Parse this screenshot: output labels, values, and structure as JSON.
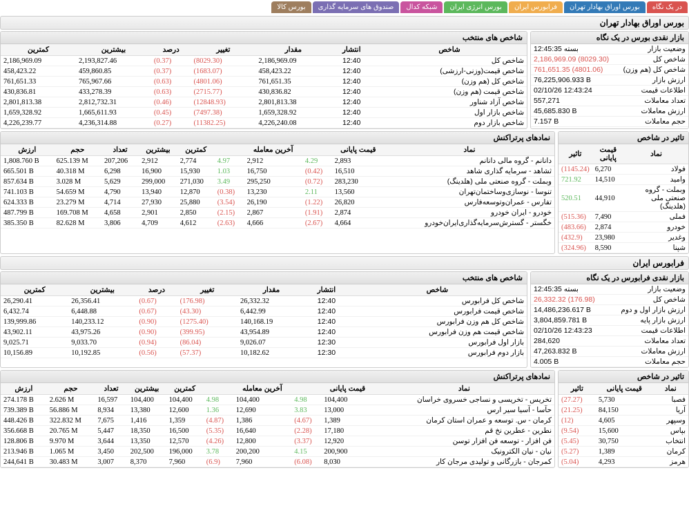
{
  "tabs": [
    {
      "label": "در یک نگاه",
      "cls": "red"
    },
    {
      "label": "بورس اوراق بهادار تهران",
      "cls": "blue"
    },
    {
      "label": "فرابورس ایران",
      "cls": "orange"
    },
    {
      "label": "بورس انرژی ایران",
      "cls": "green"
    },
    {
      "label": "شبکه کدال",
      "cls": "magenta"
    },
    {
      "label": "صندوق های سرمایه گذاری",
      "cls": "purple"
    },
    {
      "label": "بورس کالا",
      "cls": "brown"
    }
  ],
  "tse": {
    "title": "بورس اوراق بهادار تهران",
    "glance": {
      "title": "بازار نقدی بورس در یک نگاه",
      "rows": [
        {
          "k": "وضعیت بازار",
          "v": "بسته 12:45:35",
          "cls": ""
        },
        {
          "k": "شاخص کل",
          "v": "2,186,969.09 (8029.30)",
          "cls": "neg"
        },
        {
          "k": "شاخص كل (هم وزن)",
          "v": "761,651.35 (4801.06)",
          "cls": "neg"
        },
        {
          "k": "ارزش بازار",
          "v": "76,225,906.933 B",
          "cls": ""
        },
        {
          "k": "اطلاعات قیمت",
          "v": "02/10/26 12:43:24",
          "cls": ""
        },
        {
          "k": "تعداد معاملات",
          "v": "557,271",
          "cls": ""
        },
        {
          "k": "ارزش معاملات",
          "v": "45,685.830 B",
          "cls": ""
        },
        {
          "k": "حجم معاملات",
          "v": "7.157 B",
          "cls": ""
        }
      ]
    },
    "indices": {
      "title": "شاخص های منتخب",
      "headers": [
        "شاخص",
        "انتشار",
        "مقدار",
        "تغییر",
        "درصد",
        "بیشترین",
        "کمترین"
      ],
      "rows": [
        [
          "شاخص كل",
          "12:40",
          "2,186,969.09",
          "(8029.30)",
          "(0.37)",
          "2,193,827.46",
          "2,186,969.09"
        ],
        [
          "شاخص قیمت(وزنی-ارزشی)",
          "12:40",
          "458,423.22",
          "(1683.07)",
          "(0.37)",
          "459,860.85",
          "458,423.22"
        ],
        [
          "شاخص كل (هم وزن)",
          "12:40",
          "761,651.35",
          "(4801.06)",
          "(0.63)",
          "765,967.66",
          "761,651.33"
        ],
        [
          "شاخص قیمت (هم وزن)",
          "12:40",
          "430,836.82",
          "(2715.77)",
          "(0.63)",
          "433,278.39",
          "430,836.81"
        ],
        [
          "شاخص آزاد شناور",
          "12:40",
          "2,801,813.38",
          "(12848.93)",
          "(0.46)",
          "2,812,732.31",
          "2,801,813.38"
        ],
        [
          "شاخص بازار اول",
          "12:40",
          "1,659,328.92",
          "(7497.38)",
          "(0.45)",
          "1,665,611.93",
          "1,659,328.92"
        ],
        [
          "شاخص بازار دوم",
          "12:40",
          "4,226,240.08",
          "(11382.25)",
          "(0.27)",
          "4,236,314.88",
          "4,226,239.77"
        ]
      ]
    },
    "effect": {
      "title": "تاثیر در شاخص",
      "headers": [
        "نماد",
        "قیمت پایانی",
        "تاثیر"
      ],
      "rows": [
        [
          "فولاد",
          "6,270",
          "(1145.24)",
          "neg"
        ],
        [
          "وامید",
          "14,510",
          "721.92",
          "pos"
        ],
        [
          "وبملت - گروه صنعتی ملی (هلدینگ)",
          "44,910",
          "520.51",
          "pos"
        ],
        [
          "فملی",
          "7,490",
          "(515.36)",
          "neg"
        ],
        [
          "خودرو",
          "2,874",
          "(483.66)",
          "neg"
        ],
        [
          "وغدیر",
          "23,980",
          "(432.9)",
          "neg"
        ],
        [
          "شپنا",
          "8,590",
          "(324.96)",
          "neg"
        ]
      ]
    },
    "top": {
      "title": "نمادهای پرتراکنش",
      "headers": [
        "نماد",
        "قیمت پایانی",
        "",
        "آخرین معامله",
        "",
        "کمترین",
        "بیشترین",
        "تعداد",
        "حجم",
        "ارزش"
      ],
      "rows": [
        [
          "دانانم - گروه مالی دانانم",
          "2,893",
          "4.29",
          "2,912",
          "4.97",
          "2,774",
          "2,912",
          "207,206",
          "625.139 M",
          "1,808.760 B",
          "pos",
          "pos"
        ],
        [
          "ثشاهد - سرمایه گذاری شاهد",
          "16,510",
          "(0.42)",
          "16,750",
          "1.03",
          "15,930",
          "16,900",
          "6,298",
          "40.318 M",
          "665.501 B",
          "neg",
          "pos"
        ],
        [
          "وبملت - گروه صنعتی ملی (هلدینگ)",
          "283,230",
          "(0.72)",
          "295,250",
          "3.49",
          "271,030",
          "299,000",
          "5,629",
          "3.028 M",
          "857.634 B",
          "neg",
          "pos"
        ],
        [
          "تنوسا - نوسازی‌وساختمان‌تهران‌",
          "13,560",
          "2.11",
          "13,230",
          "(0.38)",
          "12,870",
          "13,940",
          "4,790",
          "54.659 M",
          "741.103 B",
          "pos",
          "neg"
        ],
        [
          "تفارس - عمران‌وتوسعه‌فارس‌",
          "26,820",
          "(1.22)",
          "26,190",
          "(3.54)",
          "25,880",
          "27,930",
          "4,714",
          "23.279 M",
          "624.333 B",
          "neg",
          "neg"
        ],
        [
          "خودرو - ایران‌ خودرو",
          "2,874",
          "(1.91)",
          "2,867",
          "(2.15)",
          "2,850",
          "2,901",
          "4,658",
          "169.708 M",
          "487.799 B",
          "neg",
          "neg"
        ],
        [
          "خگستر - گسترش‌سرمایه‌گذاری‌ایران‌خودرو",
          "4,664",
          "(2.67)",
          "4,666",
          "(2.63)",
          "4,612",
          "4,709",
          "3,806",
          "82.628 M",
          "385.350 B",
          "neg",
          "neg"
        ]
      ]
    }
  },
  "ifb": {
    "title": "فرابورس ایران",
    "glance": {
      "title": "بازار نقدی فرابورس در یک نگاه",
      "rows": [
        {
          "k": "وضعیت بازار",
          "v": "بسته 12:45:35",
          "cls": ""
        },
        {
          "k": "شاخص كل",
          "v": "26,332.32 (176.98)",
          "cls": "neg"
        },
        {
          "k": "ارزش بازار اول و دوم",
          "v": "14,486,236.617 B",
          "cls": ""
        },
        {
          "k": "ارزش بازار پایه",
          "v": "3,804,859.781 B",
          "cls": ""
        },
        {
          "k": "اطلاعات قیمت",
          "v": "02/10/26 12:43:23",
          "cls": ""
        },
        {
          "k": "تعداد معاملات",
          "v": "284,620",
          "cls": ""
        },
        {
          "k": "ارزش معاملات",
          "v": "47,263.832 B",
          "cls": ""
        },
        {
          "k": "حجم معاملات",
          "v": "4.005 B",
          "cls": ""
        }
      ]
    },
    "indices": {
      "title": "شاخص های منتخب",
      "headers": [
        "شاخص",
        "انتشار",
        "مقدار",
        "تغییر",
        "درصد",
        "بیشترین",
        "کمترین"
      ],
      "rows": [
        [
          "شاخص كل فرابورس",
          "12:40",
          "26,332.32",
          "(176.98)",
          "(0.67)",
          "26,356.41",
          "26,290.41"
        ],
        [
          "شاخص قیمت فرابورس",
          "12:40",
          "6,442.99",
          "(43.30)",
          "(0.67)",
          "6,448.88",
          "6,432.74"
        ],
        [
          "شاخص كل هم وزن فرابورس",
          "12:40",
          "140,168.19",
          "(1275.40)",
          "(0.90)",
          "140,233.12",
          "139,999.86"
        ],
        [
          "شاخص قیمت هم وزن فرابورس",
          "12:40",
          "43,954.89",
          "(399.95)",
          "(0.90)",
          "43,975.26",
          "43,902.11"
        ],
        [
          "بازار اول فرابورس",
          "12:30",
          "9,026.07",
          "(86.04)",
          "(0.94)",
          "9,033.70",
          "9,025.71"
        ],
        [
          "بازار دوم فرابورس",
          "12:30",
          "10,182.62",
          "(57.37)",
          "(0.56)",
          "10,192.85",
          "10,156.89"
        ]
      ]
    },
    "effect": {
      "title": "تاثیر در شاخص",
      "headers": [
        "نماد",
        "قیمت پایانی",
        "تاثیر"
      ],
      "rows": [
        [
          "فصبا",
          "5,730",
          "(27.27)",
          "neg"
        ],
        [
          "آریا",
          "84,150",
          "(21.25)",
          "neg"
        ],
        [
          "وسپهر",
          "4,605",
          "(12)",
          "neg"
        ],
        [
          "بپاس",
          "15,600",
          "(9.54)",
          "neg"
        ],
        [
          "انتخاب",
          "30,750",
          "(5.45)",
          "neg"
        ],
        [
          "کرمان",
          "1,389",
          "(5.27)",
          "neg"
        ],
        [
          "هرمز",
          "4,293",
          "(5.04)",
          "neg"
        ]
      ]
    },
    "top": {
      "title": "نمادهای پرتراکنش",
      "headers": [
        "نماد",
        "قیمت پایانی",
        "",
        "آخرین معامله",
        "",
        "کمترین",
        "بیشترین",
        "تعداد",
        "حجم",
        "ارزش"
      ],
      "rows": [
        [
          "تخریس - تخریسی و نساجی خسروی خراسان",
          "104,400",
          "4.98",
          "104,400",
          "4.98",
          "104,400",
          "104,400",
          "16,597",
          "2.626 M",
          "274.178 B",
          "pos",
          "pos"
        ],
        [
          "حآسا - آسیا سیر ارس",
          "13,000",
          "3.83",
          "12,690",
          "1.36",
          "12,600",
          "13,380",
          "8,934",
          "56.886 M",
          "739.389 B",
          "pos",
          "pos"
        ],
        [
          "کرمان - س. توسعه و عمران استان کرمان",
          "1,389",
          "(4.67)",
          "1,386",
          "(4.87)",
          "1,359",
          "1,416",
          "7,675",
          "322.832 M",
          "448.426 B",
          "neg",
          "neg"
        ],
        [
          "نطرین - عطرین نخ قم",
          "17,180",
          "(2.28)",
          "16,640",
          "(5.35)",
          "16,500",
          "18,350",
          "5,447",
          "20.765 M",
          "356.668 B",
          "neg",
          "neg"
        ],
        [
          "فن افزار - توسعه فن افزار توسن",
          "12,920",
          "(3.37)",
          "12,800",
          "(4.26)",
          "12,570",
          "13,350",
          "3,644",
          "9.970 M",
          "128.806 B",
          "neg",
          "neg"
        ],
        [
          "نیان - نیان الکترونیک",
          "200,900",
          "4.15",
          "200,200",
          "3.78",
          "196,000",
          "202,500",
          "3,450",
          "1.065 M",
          "213.946 B",
          "pos",
          "pos"
        ],
        [
          "کمرجان - بازرگانی و تولیدی مرجان کار",
          "8,030",
          "(6.08)",
          "7,960",
          "(6.9)",
          "7,960",
          "8,370",
          "3,007",
          "30.483 M",
          "244,641 B",
          "neg",
          "neg"
        ]
      ]
    }
  }
}
